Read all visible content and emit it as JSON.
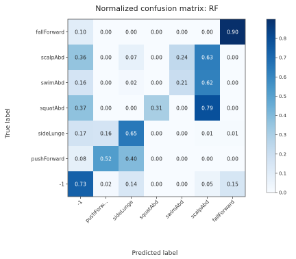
{
  "chart_data": {
    "type": "heatmap",
    "title": "Normalized confusion matrix: RF",
    "xlabel": "Predicted label",
    "ylabel": "True label",
    "x_categories": [
      "-1",
      "pushForward",
      "sideLunge",
      "squatAbd",
      "swimAbd",
      "scalpAbd",
      "fallForward"
    ],
    "y_categories": [
      "fallForward",
      "scalpAbd",
      "swimAbd",
      "squatAbd",
      "sideLunge",
      "pushForward",
      "-1"
    ],
    "x_tick_labels": [
      "-1",
      "pushForw...",
      "sideLunge",
      "squatAbd",
      "swimAbd",
      "scalpAbd",
      "fallForward"
    ],
    "y_tick_labels": [
      "fallForward",
      "scalpAbd",
      "swimAbd",
      "squatAbd",
      "sideLunge",
      "pushForward",
      "-1"
    ],
    "matrix": [
      [
        0.1,
        0.0,
        0.0,
        0.0,
        0.0,
        0.0,
        0.9
      ],
      [
        0.36,
        0.0,
        0.07,
        0.0,
        0.24,
        0.63,
        0.0
      ],
      [
        0.16,
        0.0,
        0.02,
        0.0,
        0.21,
        0.62,
        0.0
      ],
      [
        0.37,
        0.0,
        0.0,
        0.31,
        0.0,
        0.79,
        0.0
      ],
      [
        0.17,
        0.16,
        0.65,
        0.0,
        0.0,
        0.01,
        0.01
      ],
      [
        0.08,
        0.52,
        0.4,
        0.0,
        0.0,
        0.0,
        0.0
      ],
      [
        0.73,
        0.02,
        0.14,
        0.0,
        0.0,
        0.05,
        0.15
      ]
    ],
    "colormap": "Blues",
    "colorbar_ticks": [
      0.0,
      0.1,
      0.2,
      0.3,
      0.4,
      0.5,
      0.6,
      0.7,
      0.8
    ],
    "colorbar_range": [
      0,
      0.9
    ],
    "colors": {
      "low": "#f7fbff",
      "high": "#08306b"
    }
  }
}
